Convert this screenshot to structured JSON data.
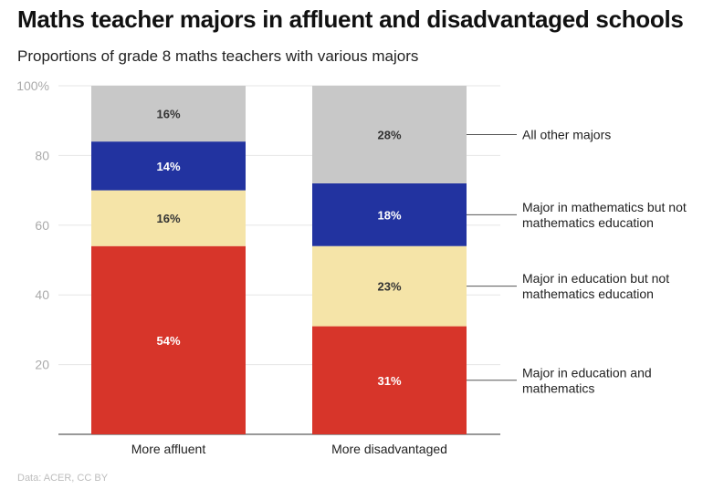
{
  "title": "Maths teacher majors in affluent and disadvantaged schools",
  "subtitle": "Proportions of grade 8 maths teachers with various majors",
  "source": "Data: ACER, CC BY",
  "chart_data": {
    "type": "bar",
    "stacked": true,
    "categories": [
      "More affluent",
      "More disadvantaged"
    ],
    "ylim": [
      0,
      100
    ],
    "yticks": [
      20,
      40,
      60,
      80,
      100
    ],
    "ytick_labels": [
      "20",
      "40",
      "60",
      "80",
      "100%"
    ],
    "grid": true,
    "series": [
      {
        "name": "Major in education and mathematics",
        "values": [
          54,
          31
        ],
        "labels": [
          "54%",
          "31%"
        ],
        "color": "#d7352a",
        "label_color": "#ffffff"
      },
      {
        "name": "Major in education but not mathematics education",
        "values": [
          16,
          23
        ],
        "labels": [
          "16%",
          "23%"
        ],
        "color": "#f5e4a8",
        "label_color": "#333333"
      },
      {
        "name": "Major in mathematics but not mathematics education",
        "values": [
          14,
          18
        ],
        "labels": [
          "14%",
          "18%"
        ],
        "color": "#2233a0",
        "label_color": "#ffffff"
      },
      {
        "name": "All other majors",
        "values": [
          16,
          28
        ],
        "labels": [
          "16%",
          "28%"
        ],
        "color": "#c8c8c8",
        "label_color": "#333333"
      }
    ],
    "legend_placement": "right, beside second bar"
  }
}
